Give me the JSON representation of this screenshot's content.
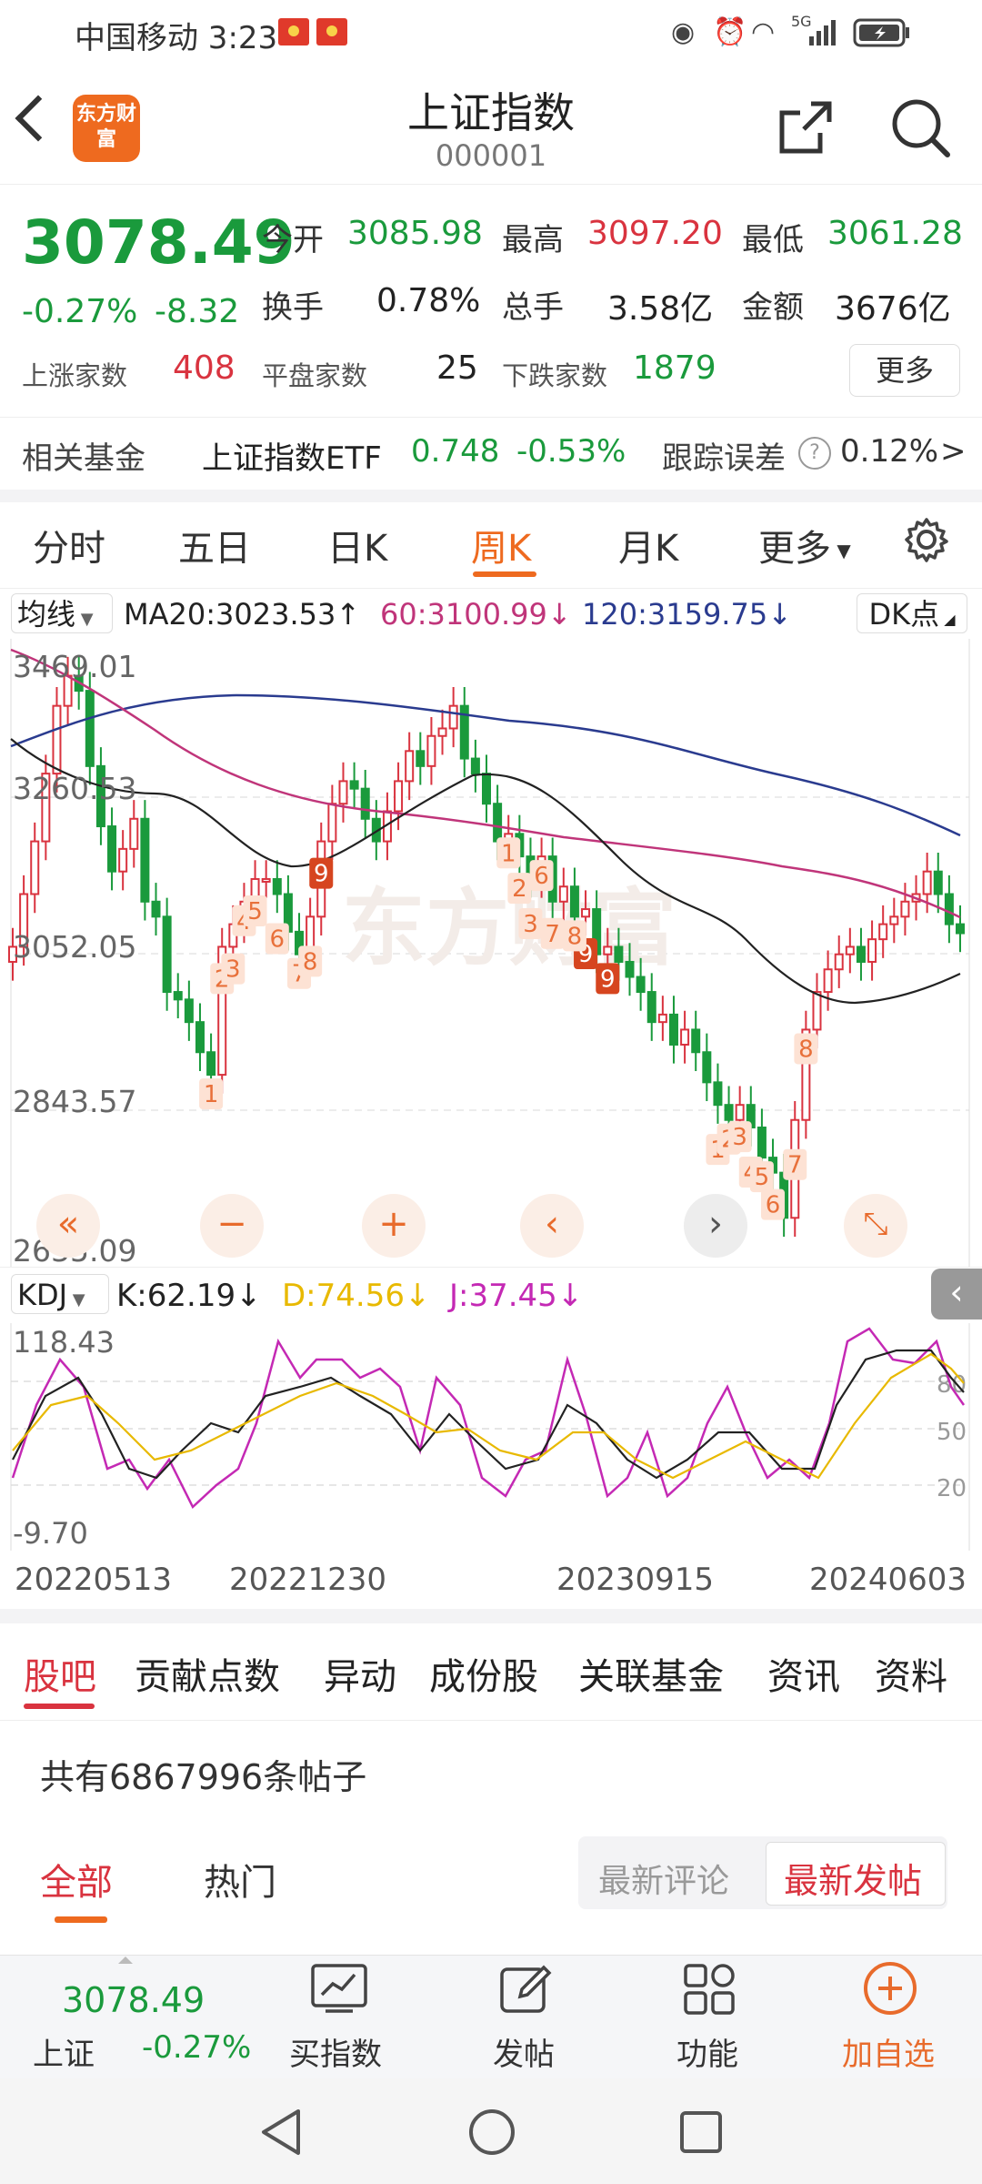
{
  "status_bar": {
    "carrier_time": "中国移动 3:23",
    "network": "5G"
  },
  "header": {
    "title": "上证指数",
    "code": "000001",
    "logo_text": "东方财富"
  },
  "quote": {
    "price": "3078.49",
    "change_pct": "-0.27%",
    "change": "-8.32",
    "open_label": "今开",
    "open": "3085.98",
    "high_label": "最高",
    "high": "3097.20",
    "low_label": "最低",
    "low": "3061.28",
    "turnover_label": "换手",
    "turnover": "0.78%",
    "volume_label": "总手",
    "volume": "3.58亿",
    "amount_label": "金额",
    "amount": "3676亿",
    "rise_label": "上涨家数",
    "rise": "408",
    "flat_label": "平盘家数",
    "flat": "25",
    "fall_label": "下跌家数",
    "fall": "1879",
    "more_label": "更多"
  },
  "related_fund": {
    "label": "相关基金",
    "name": "上证指数ETF",
    "price": "0.748",
    "change": "-0.53%",
    "error_label": "跟踪误差",
    "error": "0.12%",
    "arrow": ">"
  },
  "period_tabs": [
    {
      "label": "分时"
    },
    {
      "label": "五日"
    },
    {
      "label": "日K"
    },
    {
      "label": "周K",
      "active": true
    },
    {
      "label": "月K"
    },
    {
      "label": "更多"
    }
  ],
  "ma_bar": {
    "selector": "均线",
    "ma20": "MA20:3023.53↑",
    "ma60": "60:3100.99↓",
    "ma120": "120:3159.75↓",
    "dk": "DK点"
  },
  "chart_data": {
    "type": "candlestick",
    "y_ticks": [
      "3469.01",
      "3260.53",
      "3052.05",
      "2843.57",
      "2635.09"
    ],
    "ylim": [
      2635.09,
      3469.01
    ],
    "x_ticks": [
      "20220513",
      "20221230",
      "20230915",
      "20240603"
    ],
    "series": [
      {
        "name": "MA20",
        "color": "#222222",
        "value": "3023.53"
      },
      {
        "name": "60",
        "color": "#c0357a",
        "value": "3100.99"
      },
      {
        "name": "120",
        "color": "#2a3b8f",
        "value": "3159.75"
      }
    ],
    "watermark": "东方财富",
    "td_marks": [
      "1",
      "2",
      "3",
      "4",
      "5",
      "6",
      "7",
      "9",
      "8",
      "1",
      "2",
      "3",
      "6",
      "7",
      "9",
      "8",
      "9",
      "1",
      "2",
      "3",
      "4",
      "5",
      "6",
      "7",
      "8"
    ]
  },
  "kdj": {
    "selector": "KDJ",
    "k": "K:62.19↓",
    "d": "D:74.56↓",
    "j": "J:37.45↓",
    "y_top": "118.43",
    "y_bottom": "-9.70",
    "levels": [
      "80",
      "50",
      "20"
    ],
    "colors": {
      "k": "#222222",
      "d": "#e8b900",
      "j": "#c429b4"
    }
  },
  "section_tabs": [
    {
      "label": "股吧",
      "active": true
    },
    {
      "label": "贡献点数"
    },
    {
      "label": "异动"
    },
    {
      "label": "成份股"
    },
    {
      "label": "关联基金"
    },
    {
      "label": "资讯"
    },
    {
      "label": "资料"
    }
  ],
  "posts": {
    "count_text": "共有6867996条帖子"
  },
  "sub_tabs": {
    "all": "全部",
    "hot": "热门",
    "sort_latest_comment": "最新评论",
    "sort_latest_post": "最新发帖"
  },
  "bottom_bar": {
    "price": "3078.49",
    "name": "上证",
    "change": "-0.27%",
    "buy_index": "买指数",
    "post": "发帖",
    "functions": "功能",
    "add_watch": "加自选"
  }
}
